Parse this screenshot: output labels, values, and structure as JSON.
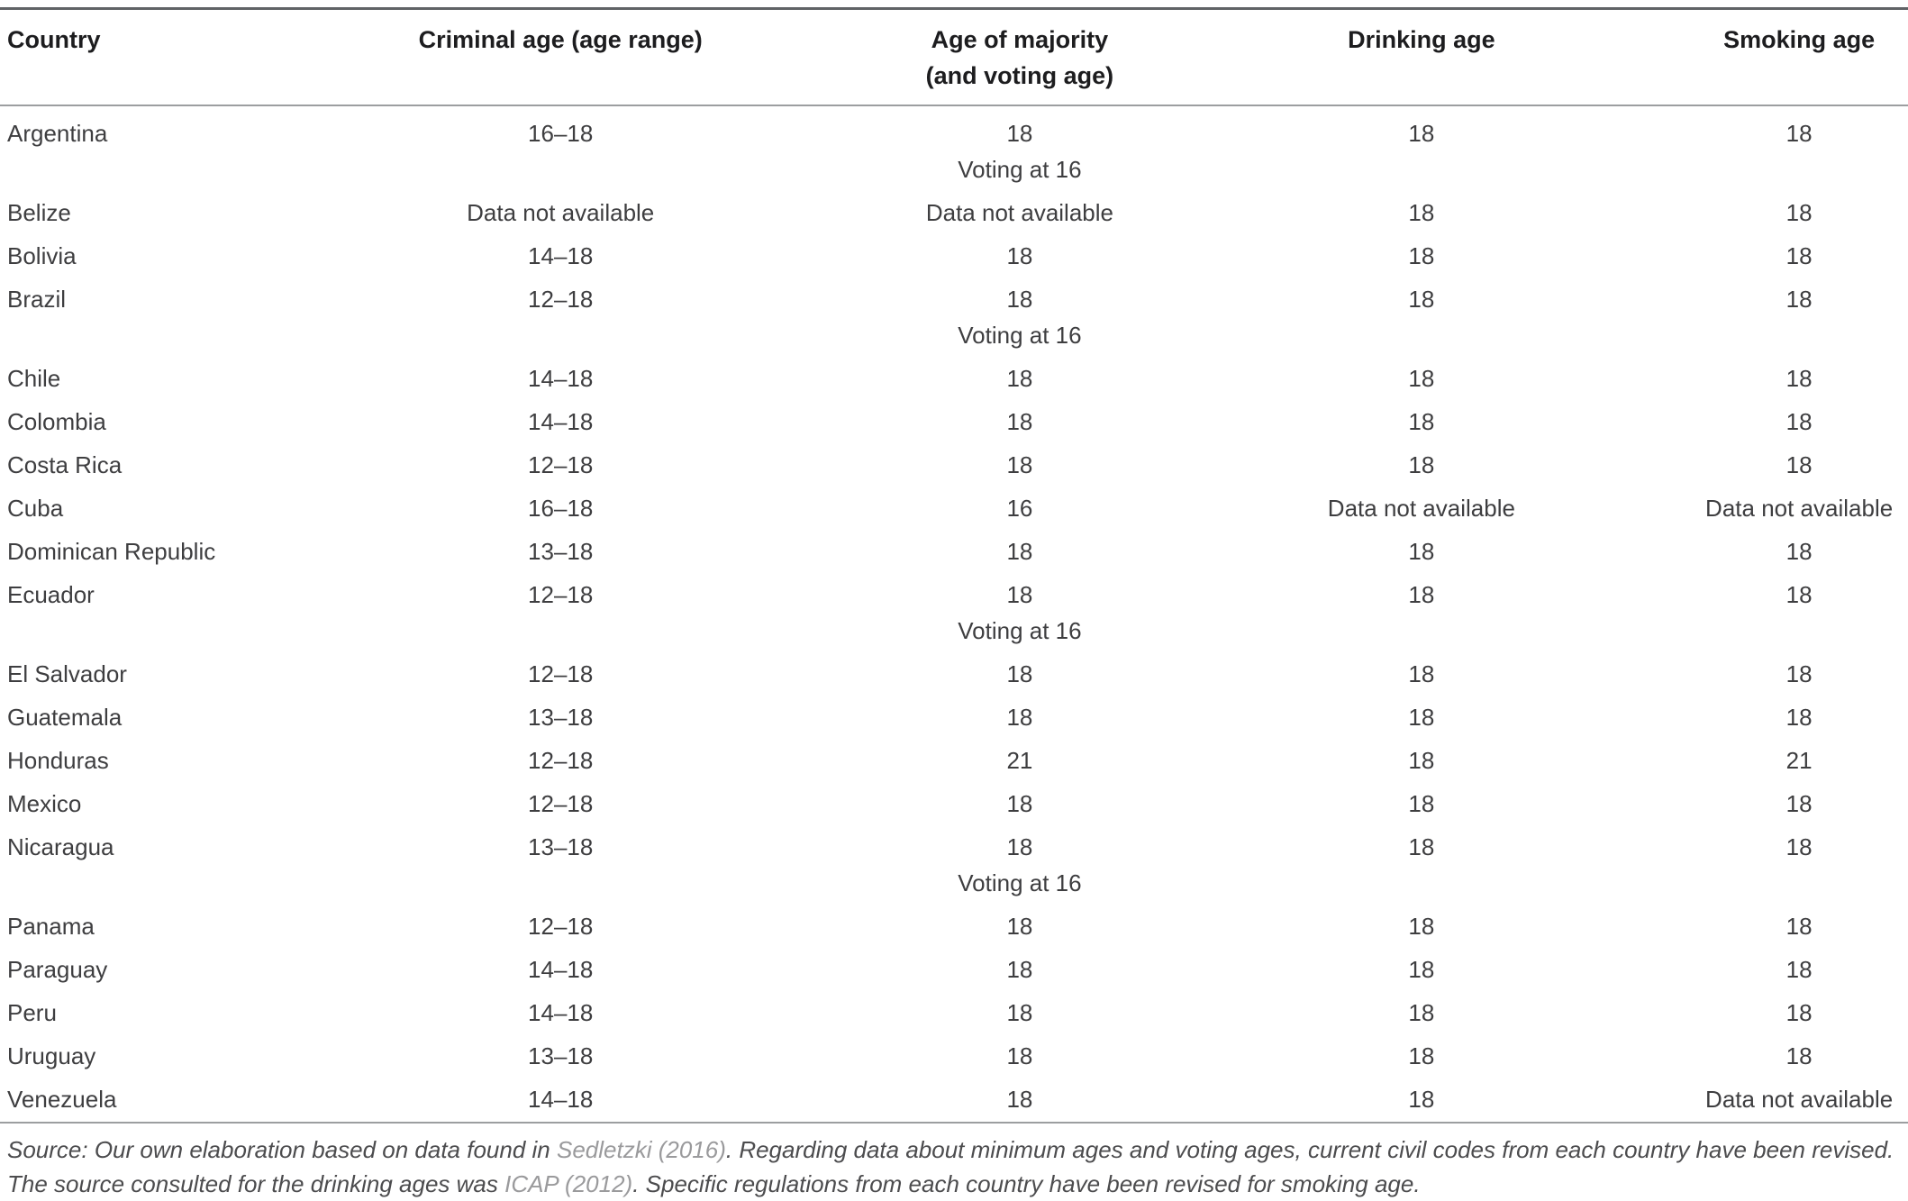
{
  "table": {
    "columns": [
      {
        "label": "Country"
      },
      {
        "label": "Criminal age (age range)"
      },
      {
        "label": "Age of majority",
        "label2": "(and voting age)"
      },
      {
        "label": "Drinking age"
      },
      {
        "label": "Smoking age"
      }
    ],
    "rows": [
      {
        "country": "Argentina",
        "criminal_age": "16–18",
        "age_of_majority": "18",
        "voting_note": "Voting at 16",
        "drinking_age": "18",
        "smoking_age": "18"
      },
      {
        "country": "Belize",
        "criminal_age": "Data not available",
        "age_of_majority": "Data not available",
        "drinking_age": "18",
        "smoking_age": "18"
      },
      {
        "country": "Bolivia",
        "criminal_age": "14–18",
        "age_of_majority": "18",
        "drinking_age": "18",
        "smoking_age": "18"
      },
      {
        "country": "Brazil",
        "criminal_age": "12–18",
        "age_of_majority": "18",
        "voting_note": "Voting at 16",
        "drinking_age": "18",
        "smoking_age": "18"
      },
      {
        "country": "Chile",
        "criminal_age": "14–18",
        "age_of_majority": "18",
        "drinking_age": "18",
        "smoking_age": "18"
      },
      {
        "country": "Colombia",
        "criminal_age": "14–18",
        "age_of_majority": "18",
        "drinking_age": "18",
        "smoking_age": "18"
      },
      {
        "country": "Costa Rica",
        "criminal_age": "12–18",
        "age_of_majority": "18",
        "drinking_age": "18",
        "smoking_age": "18"
      },
      {
        "country": "Cuba",
        "criminal_age": "16–18",
        "age_of_majority": "16",
        "drinking_age": "Data not available",
        "smoking_age": "Data not available"
      },
      {
        "country": "Dominican Republic",
        "criminal_age": "13–18",
        "age_of_majority": "18",
        "drinking_age": "18",
        "smoking_age": "18"
      },
      {
        "country": "Ecuador",
        "criminal_age": "12–18",
        "age_of_majority": "18",
        "voting_note": "Voting at 16",
        "drinking_age": "18",
        "smoking_age": "18"
      },
      {
        "country": "El Salvador",
        "criminal_age": "12–18",
        "age_of_majority": "18",
        "drinking_age": "18",
        "smoking_age": "18"
      },
      {
        "country": "Guatemala",
        "criminal_age": "13–18",
        "age_of_majority": "18",
        "drinking_age": "18",
        "smoking_age": "18"
      },
      {
        "country": "Honduras",
        "criminal_age": "12–18",
        "age_of_majority": "21",
        "drinking_age": "18",
        "smoking_age": "21"
      },
      {
        "country": "Mexico",
        "criminal_age": "12–18",
        "age_of_majority": "18",
        "drinking_age": "18",
        "smoking_age": "18"
      },
      {
        "country": "Nicaragua",
        "criminal_age": "13–18",
        "age_of_majority": "18",
        "voting_note": "Voting at 16",
        "drinking_age": "18",
        "smoking_age": "18"
      },
      {
        "country": "Panama",
        "criminal_age": "12–18",
        "age_of_majority": "18",
        "drinking_age": "18",
        "smoking_age": "18"
      },
      {
        "country": "Paraguay",
        "criminal_age": "14–18",
        "age_of_majority": "18",
        "drinking_age": "18",
        "smoking_age": "18"
      },
      {
        "country": "Peru",
        "criminal_age": "14–18",
        "age_of_majority": "18",
        "drinking_age": "18",
        "smoking_age": "18"
      },
      {
        "country": "Uruguay",
        "criminal_age": "13–18",
        "age_of_majority": "18",
        "drinking_age": "18",
        "smoking_age": "18"
      },
      {
        "country": "Venezuela",
        "criminal_age": "14–18",
        "age_of_majority": "18",
        "drinking_age": "18",
        "smoking_age": "Data not available"
      }
    ]
  },
  "footnote": {
    "parts": [
      {
        "style": "normal",
        "text": "Source: Our own elaboration based on data found in "
      },
      {
        "style": "cite",
        "text": "Sedletzki (2016)"
      },
      {
        "style": "normal",
        "text": ". Regarding data about minimum ages and voting ages, current civil codes from each country have been revised. The source consulted for the drinking ages was "
      },
      {
        "style": "cite",
        "text": "ICAP (2012)"
      },
      {
        "style": "normal",
        "text": ". Specific regulations from each country have been revised for smoking age."
      }
    ]
  },
  "colors": {
    "header_text": "#1d1d1f",
    "body_text": "#3e3e40",
    "rule_top": "#606366",
    "rule_light": "#9c9ea0",
    "citation": "#9a9a9c"
  }
}
